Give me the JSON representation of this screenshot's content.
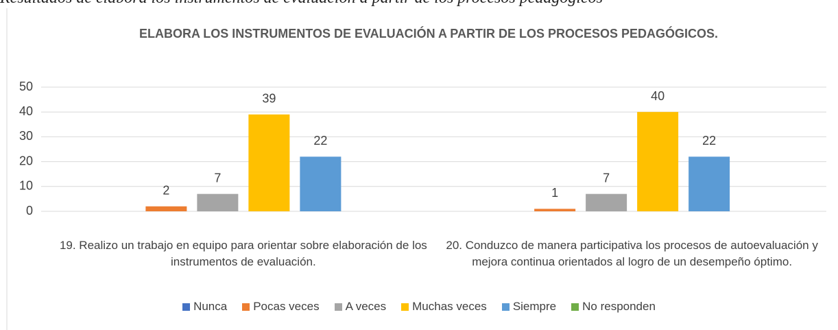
{
  "caption": "Resultados de elabora los instrumentos de evaluación a partir de los procesos pedagógicos",
  "chart_data": {
    "type": "bar",
    "title": "ELABORA LOS INSTRUMENTOS DE EVALUACIÓN A PARTIR DE LOS PROCESOS PEDAGÓGICOS.",
    "categories": [
      "19. Realizo un trabajo en equipo para orientar sobre elaboración de los instrumentos de evaluación.",
      "20. Conduzco de manera participativa los procesos de autoevaluación y mejora continua orientados al logro de un desempeño óptimo."
    ],
    "series": [
      {
        "name": "Nunca",
        "color": "#4472c4",
        "values": [
          0,
          0
        ]
      },
      {
        "name": "Pocas veces",
        "color": "#ed7d31",
        "values": [
          2,
          1
        ]
      },
      {
        "name": "A veces",
        "color": "#a5a5a5",
        "values": [
          7,
          7
        ]
      },
      {
        "name": "Muchas veces",
        "color": "#ffc000",
        "values": [
          39,
          40
        ]
      },
      {
        "name": "Siempre",
        "color": "#5b9bd5",
        "values": [
          22,
          22
        ]
      },
      {
        "name": "No responden",
        "color": "#70ad47",
        "values": [
          0,
          0
        ]
      }
    ],
    "ylim": [
      0,
      50
    ],
    "yticks": [
      0,
      10,
      20,
      30,
      40,
      50
    ],
    "grid": true,
    "legend": "bottom"
  }
}
